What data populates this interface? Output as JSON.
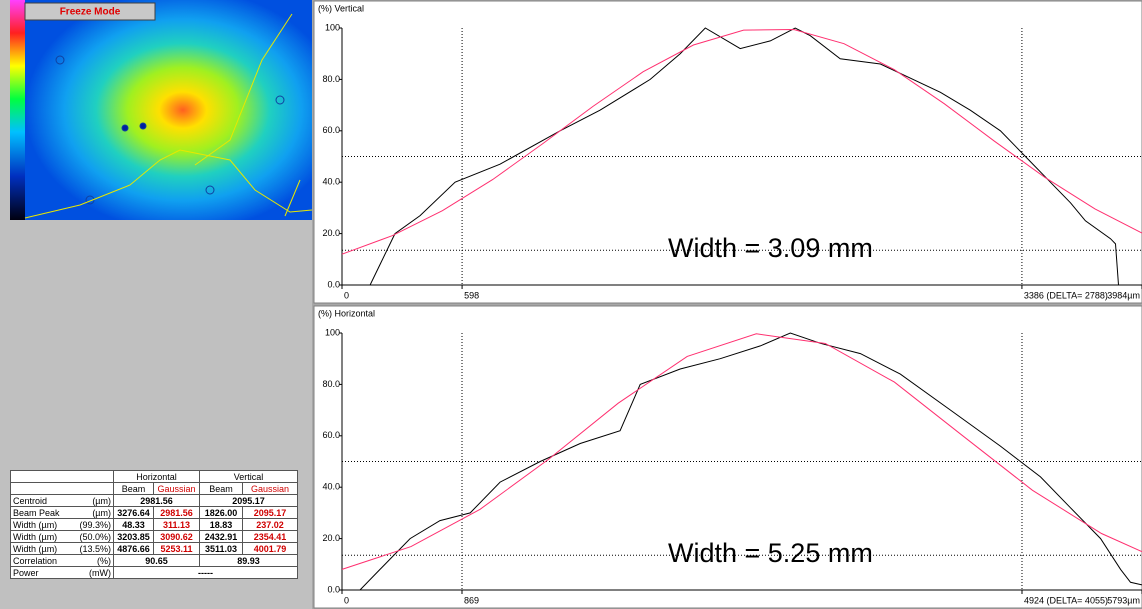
{
  "freeze_button": "Freeze Mode",
  "chart_data": [
    {
      "type": "line",
      "y_label": "(%) Vertical",
      "annotation": "Width = 3.09 mm",
      "xlim": [
        0,
        3984
      ],
      "ylim": [
        0,
        100
      ],
      "xticks": [
        0,
        598,
        {
          "value": 3386,
          "label": "3386 (DELTA= 2788)"
        },
        {
          "value": 3984,
          "label": "3984µm"
        }
      ],
      "yticks": [
        {
          "value": 0,
          "label": "0.0"
        },
        {
          "value": 20,
          "label": "20.0"
        },
        {
          "value": 40,
          "label": "40.0"
        },
        {
          "value": 60,
          "label": "60.0"
        },
        {
          "value": 80,
          "label": "80.0"
        },
        100
      ],
      "grid_levels": [
        50,
        13.5
      ],
      "series": [
        {
          "color": "#000000",
          "x": [
            0,
            140,
            264,
            389,
            563,
            787,
            1086,
            1285,
            1535,
            1684,
            1809,
            1983,
            2133,
            2257,
            2332,
            2481,
            2681,
            2980,
            3129,
            3279,
            3428,
            3528,
            3628,
            3702,
            3827,
            3852,
            3867
          ],
          "values": [
            0,
            0,
            20,
            27,
            40,
            47,
            60,
            68,
            80,
            90,
            100,
            92,
            95,
            100,
            97,
            88,
            86,
            75,
            68,
            60,
            48,
            40,
            32,
            25,
            18,
            16,
            0
          ]
        },
        {
          "color": "#ff3070",
          "x": [
            0,
            250,
            500,
            750,
            1000,
            1250,
            1500,
            1750,
            2000,
            2250,
            2500,
            2750,
            3000,
            3250,
            3500,
            3750,
            3984
          ],
          "values": [
            12.0,
            19.2,
            28.9,
            41.0,
            55.0,
            69.5,
            83.0,
            93.4,
            99.2,
            99.4,
            93.9,
            83.8,
            70.5,
            55.9,
            41.9,
            29.6,
            20.2
          ]
        }
      ]
    },
    {
      "type": "line",
      "y_label": "(%) Horizontal",
      "annotation": "Width = 5.25 mm",
      "xlim": [
        0,
        5793
      ],
      "ylim": [
        0,
        100
      ],
      "xticks": [
        0,
        869,
        {
          "value": 4924,
          "label": "4924 (DELTA= 4055)"
        },
        {
          "value": 5793,
          "label": "5793µm"
        }
      ],
      "yticks": [
        {
          "value": 0,
          "label": "0.0"
        },
        {
          "value": 20,
          "label": "20.0"
        },
        {
          "value": 40,
          "label": "40.0"
        },
        {
          "value": 60,
          "label": "60.0"
        },
        {
          "value": 80,
          "label": "80.0"
        },
        100
      ],
      "grid_levels": [
        50,
        13.5
      ],
      "series": [
        {
          "color": "#000000",
          "x": [
            0,
            130,
            275,
            493,
            710,
            928,
            1145,
            1435,
            1725,
            2014,
            2159,
            2449,
            2739,
            3029,
            3246,
            3464,
            3754,
            4043,
            4406,
            4768,
            5058,
            5275,
            5493,
            5638,
            5710,
            5793
          ],
          "values": [
            0,
            0,
            8,
            20,
            27,
            30,
            42,
            50,
            57,
            62,
            80,
            86,
            90,
            95,
            100,
            96,
            92,
            84,
            70,
            56,
            44,
            32,
            20,
            8,
            3,
            2
          ]
        },
        {
          "color": "#ff3070",
          "x": [
            0,
            500,
            1000,
            1500,
            2000,
            2500,
            3000,
            3500,
            4000,
            4500,
            5000,
            5500,
            5793
          ],
          "values": [
            8.0,
            16.9,
            31.4,
            51.0,
            72.7,
            90.9,
            99.7,
            95.9,
            80.9,
            59.8,
            38.8,
            22.0,
            14.9
          ]
        }
      ]
    }
  ],
  "table": {
    "header": [
      "Horizontal",
      "Vertical"
    ],
    "subheader": [
      "Beam",
      "Gaussian",
      "Beam",
      "Gaussian"
    ],
    "rows": [
      {
        "label": "Centroid",
        "unit": "(µm)",
        "cells": [
          "2981.56",
          "2095.17"
        ]
      },
      {
        "label": "Beam Peak",
        "unit": "(µm)",
        "cells": [
          "3276.64",
          "2981.56",
          "1826.00",
          "2095.17"
        ]
      },
      {
        "label": "Width (µm)",
        "unit": "(99.3%)",
        "cells": [
          "48.33",
          "311.13",
          "18.83",
          "237.02"
        ]
      },
      {
        "label": "Width (µm)",
        "unit": "(50.0%)",
        "cells": [
          "3203.85",
          "3090.62",
          "2432.91",
          "2354.41"
        ]
      },
      {
        "label": "Width (µm)",
        "unit": "(13.5%)",
        "cells": [
          "4876.66",
          "5253.11",
          "3511.03",
          "4001.79"
        ]
      },
      {
        "label": "Correlation",
        "unit": "(%)",
        "cells": [
          "90.65",
          "89.93"
        ]
      },
      {
        "label": "Power",
        "unit": "(mW)",
        "cells": [
          "-----"
        ]
      }
    ]
  }
}
